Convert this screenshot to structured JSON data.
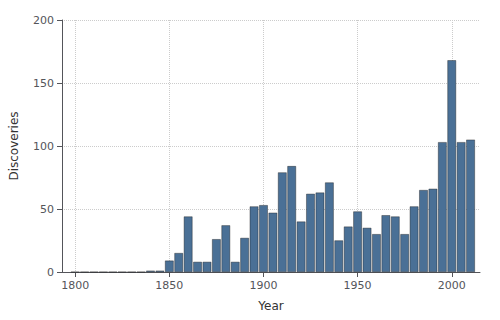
{
  "chart_data": {
    "type": "bar",
    "x": [
      1800,
      1805,
      1810,
      1815,
      1820,
      1825,
      1830,
      1835,
      1840,
      1845,
      1850,
      1855,
      1860,
      1865,
      1870,
      1875,
      1880,
      1885,
      1890,
      1895,
      1900,
      1905,
      1910,
      1915,
      1920,
      1925,
      1930,
      1935,
      1940,
      1945,
      1950,
      1955,
      1960,
      1965,
      1970,
      1975,
      1980,
      1985,
      1990,
      1995,
      2000,
      2005,
      2010
    ],
    "values": [
      0,
      0,
      0,
      0,
      0,
      0,
      0,
      0,
      1,
      1,
      9,
      15,
      44,
      8,
      8,
      26,
      37,
      8,
      27,
      52,
      53,
      47,
      79,
      84,
      40,
      62,
      63,
      71,
      25,
      36,
      48,
      35,
      30,
      45,
      44,
      30,
      52,
      65,
      66,
      103,
      168,
      103,
      105
    ],
    "color": "#4a7096",
    "xlabel": "Year",
    "ylabel": "Discoveries",
    "xlim": [
      1793,
      2015
    ],
    "ylim": [
      0,
      200
    ],
    "xticks": [
      1800,
      1850,
      1900,
      1950,
      2000
    ],
    "yticks": [
      0,
      50,
      100,
      150,
      200
    ],
    "grid": true
  }
}
